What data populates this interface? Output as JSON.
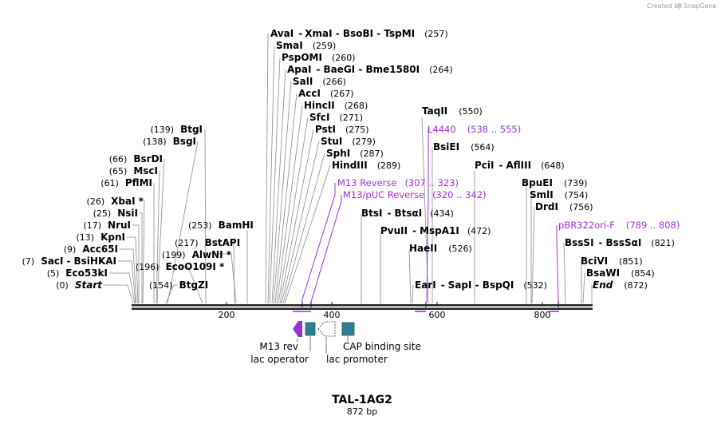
{
  "credit": {
    "text": "Created by",
    "brand": "SnapGene"
  },
  "title": "TAL-1AG2",
  "subtitle": "872 bp",
  "sequence_length": 872,
  "ticks": [
    "200",
    "400",
    "600",
    "800"
  ],
  "enzymes": [
    {
      "name": "Start",
      "pos": "(0)"
    },
    {
      "name": "Eco53kI",
      "pos": "(5)"
    },
    {
      "name": "SacI",
      "alias": "BsiHKAI",
      "pos": "(7)"
    },
    {
      "name": "Acc65I",
      "pos": "(9)"
    },
    {
      "name": "KpnI",
      "pos": "(13)"
    },
    {
      "name": "NruI",
      "pos": "(17)"
    },
    {
      "name": "NsiI",
      "pos": "(25)"
    },
    {
      "name": "XbaI *",
      "pos": "(26)"
    },
    {
      "name": "PflMI",
      "pos": "(61)"
    },
    {
      "name": "MscI",
      "pos": "(65)"
    },
    {
      "name": "BsrDI",
      "pos": "(66)"
    },
    {
      "name": "BsgI",
      "pos": "(138)"
    },
    {
      "name": "BtgI",
      "pos": "(139)"
    },
    {
      "name": "BtgZI",
      "pos": "(154)"
    },
    {
      "name": "EcoO109I *",
      "pos": "(196)"
    },
    {
      "name": "AlwNI *",
      "pos": "(199)"
    },
    {
      "name": "BstAPI",
      "pos": "(217)"
    },
    {
      "name": "BamHI",
      "pos": "(253)"
    },
    {
      "name": "AvaI",
      "alias": "XmaI - BsoBI - TspMI",
      "pos": "(257)"
    },
    {
      "name": "SmaI",
      "pos": "(259)"
    },
    {
      "name": "PspOMI",
      "pos": "(260)"
    },
    {
      "name": "ApaI",
      "alias": "BaeGI - Bme1580I",
      "pos": "(264)"
    },
    {
      "name": "SalI",
      "pos": "(266)"
    },
    {
      "name": "AccI",
      "pos": "(267)"
    },
    {
      "name": "HincII",
      "pos": "(268)"
    },
    {
      "name": "SfcI",
      "pos": "(271)"
    },
    {
      "name": "PstI",
      "pos": "(275)"
    },
    {
      "name": "StuI",
      "pos": "(279)"
    },
    {
      "name": "SphI",
      "pos": "(287)"
    },
    {
      "name": "HindIII",
      "pos": "(289)"
    },
    {
      "name": "BtsI",
      "alias": "BtsαI",
      "pos": "(434)"
    },
    {
      "name": "PvuII",
      "alias": "MspA1I",
      "pos": "(472)"
    },
    {
      "name": "HaeII",
      "pos": "(526)"
    },
    {
      "name": "EarI",
      "alias": "SapI - BspQI",
      "pos": "(532)"
    },
    {
      "name": "TaqII",
      "pos": "(550)"
    },
    {
      "name": "BsiEI",
      "pos": "(564)"
    },
    {
      "name": "PciI",
      "alias": "AflIII",
      "pos": "(648)"
    },
    {
      "name": "BpuEI",
      "pos": "(739)"
    },
    {
      "name": "SmlI",
      "pos": "(754)"
    },
    {
      "name": "DrdI",
      "pos": "(756)"
    },
    {
      "name": "BssSI",
      "alias": "BssSαI",
      "pos": "(821)"
    },
    {
      "name": "BciVI",
      "pos": "(851)"
    },
    {
      "name": "BsaWI",
      "pos": "(854)"
    },
    {
      "name": "End",
      "pos": "(872)"
    }
  ],
  "primers": [
    {
      "name": "M13 Reverse",
      "range": "(307 .. 323)"
    },
    {
      "name": "M13/pUC Reverse",
      "range": "(320 .. 342)"
    },
    {
      "name": "L4440",
      "range": "(538 .. 555)"
    },
    {
      "name": "pBR322ori-F",
      "range": "(789 .. 808)"
    }
  ],
  "features": [
    {
      "name": "M13 rev",
      "color": "#9b30d9"
    },
    {
      "name": "lac operator",
      "color": "#2f7f91"
    },
    {
      "name": "lac promoter",
      "color": "#ffffff"
    },
    {
      "name": "CAP binding site",
      "color": "#2f7f91"
    }
  ],
  "colors": {
    "primer": "#a12fd9",
    "feature_teal": "#2f7f91",
    "feature_purple": "#9b30d9"
  }
}
